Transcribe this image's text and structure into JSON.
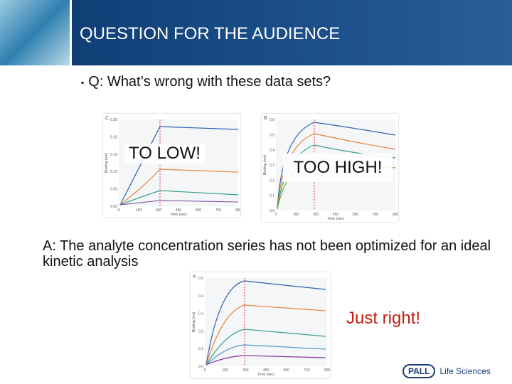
{
  "header": {
    "title": "QUESTION FOR THE AUDIENCE"
  },
  "question": "Q: What’s wrong with these data sets?",
  "panels": [
    {
      "letter": "C",
      "x_label": "Time (sec)",
      "y_label": "Binding (nm)",
      "xticks": [
        "0",
        "150",
        "300",
        "450",
        "600",
        "750",
        "900"
      ],
      "yticks": [
        "0.00",
        "0.05",
        "0.10",
        "0.15",
        "0.20",
        "0.25"
      ],
      "callout": "TO LOW!"
    },
    {
      "letter": "B",
      "x_label": "Time (sec)",
      "y_label": "Binding (nm)",
      "xticks": [
        "0",
        "150",
        "300",
        "450",
        "600",
        "750",
        "900"
      ],
      "yticks": [
        "0.0",
        "0.1",
        "0.2",
        "0.3",
        "0.4",
        "0.5",
        "0.6"
      ],
      "callout": "TOO HIGH!"
    },
    {
      "letter": "A",
      "x_label": "Time (sec)",
      "y_label": "Binding (nm)",
      "xticks": [
        "0",
        "150",
        "300",
        "450",
        "600",
        "750",
        "900"
      ],
      "yticks": [
        "0.0",
        "0.1",
        "0.2",
        "0.3",
        "0.4",
        "0.5"
      ],
      "callout": "Just right!"
    }
  ],
  "answer": "A: The analyte concentration series has not been optimized for an ideal kinetic analysis",
  "logo": {
    "brand": "PALL",
    "text": "Life Sciences"
  }
}
